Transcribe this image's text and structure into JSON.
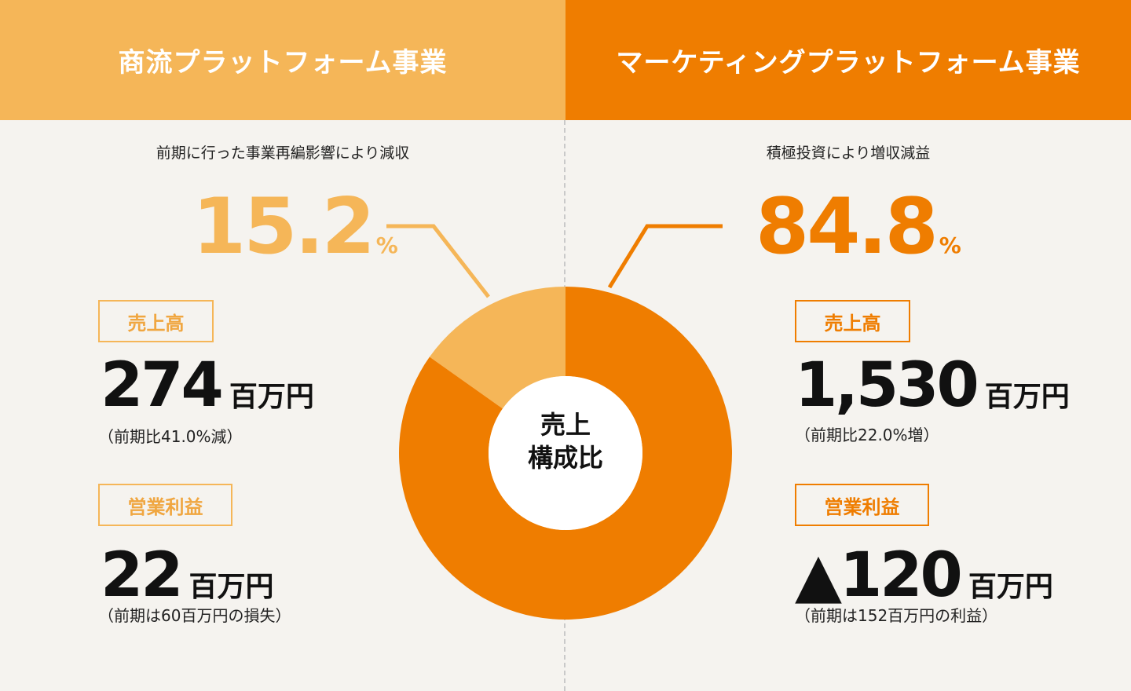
{
  "headers": {
    "left": "商流プラットフォーム事業",
    "right": "マーケティングプラットフォーム事業"
  },
  "left": {
    "note": "前期に行った事業再編影響により減収",
    "percent": "15.2",
    "percent_unit": "%",
    "sales_tag": "売上高",
    "sales_value": "274",
    "sales_unit": "百万円",
    "sales_sub": "（前期比41.0%減）",
    "profit_tag": "営業利益",
    "profit_value": "22",
    "profit_unit": "百万円",
    "profit_sub": "（前期は60百万円の損失）"
  },
  "right": {
    "note": "積極投資により増収減益",
    "percent": "84.8",
    "percent_unit": "%",
    "sales_tag": "売上高",
    "sales_value": "1,530",
    "sales_unit": "百万円",
    "sales_sub": "（前期比22.0%増）",
    "profit_tag": "営業利益",
    "profit_value": "▲120",
    "profit_unit": "百万円",
    "profit_sub": "（前期は152百万円の利益）"
  },
  "center_label_line1": "売上",
  "center_label_line2": "構成比",
  "colors": {
    "light_orange": "#f5b658",
    "dark_orange": "#ef7d00",
    "background": "#f5f3ef"
  },
  "chart_data": {
    "type": "pie",
    "title": "売上構成比",
    "categories": [
      "商流プラットフォーム事業",
      "マーケティングプラットフォーム事業"
    ],
    "values": [
      15.2,
      84.8
    ],
    "colors": [
      "#f5b658",
      "#ef7d00"
    ],
    "donut": true
  }
}
